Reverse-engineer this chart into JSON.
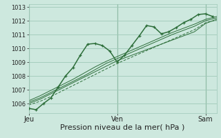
{
  "bg_color": "#cde8de",
  "grid_color": "#9fc8b8",
  "line_color": "#2d6e3a",
  "vline_color": "#4a8a5a",
  "xlabel": "Pression niveau de la mer( hPa )",
  "xlabel_fontsize": 8,
  "ylim": [
    1005.3,
    1013.2
  ],
  "yticks": [
    1006,
    1007,
    1008,
    1009,
    1010,
    1011,
    1012,
    1013
  ],
  "xtick_labels": [
    "Jeu",
    "Ven",
    "Sam"
  ],
  "xtick_positions": [
    0,
    24,
    48
  ],
  "total_hours": 51,
  "series1_x": [
    0,
    2,
    4,
    6,
    8,
    10,
    12,
    14,
    16,
    18,
    20,
    22,
    24,
    26,
    28,
    30,
    32,
    34,
    36,
    38,
    40,
    42,
    44,
    46,
    48,
    50
  ],
  "series1_y": [
    1005.65,
    1005.55,
    1006.0,
    1006.4,
    1007.2,
    1008.0,
    1008.6,
    1009.5,
    1010.3,
    1010.35,
    1010.2,
    1009.8,
    1009.0,
    1009.5,
    1010.2,
    1010.9,
    1011.65,
    1011.55,
    1011.05,
    1011.2,
    1011.5,
    1011.85,
    1012.1,
    1012.45,
    1012.5,
    1012.3
  ],
  "series2_x": [
    0,
    3,
    6,
    9,
    12,
    15,
    18,
    21,
    24,
    27,
    30,
    33,
    36,
    39,
    42,
    45,
    48,
    51
  ],
  "series2_y": [
    1006.0,
    1006.3,
    1006.7,
    1007.1,
    1007.5,
    1007.9,
    1008.3,
    1008.7,
    1009.1,
    1009.4,
    1009.7,
    1010.0,
    1010.3,
    1010.6,
    1010.9,
    1011.2,
    1011.8,
    1012.1
  ],
  "series3_x": [
    0,
    3,
    6,
    9,
    12,
    15,
    18,
    21,
    24,
    27,
    30,
    33,
    36,
    39,
    42,
    45,
    48,
    51
  ],
  "series3_y": [
    1005.9,
    1006.15,
    1006.5,
    1006.9,
    1007.3,
    1007.7,
    1008.1,
    1008.5,
    1008.9,
    1009.25,
    1009.6,
    1009.95,
    1010.3,
    1010.65,
    1011.0,
    1011.35,
    1011.85,
    1012.05
  ],
  "series4_x": [
    0,
    3,
    6,
    9,
    12,
    15,
    18,
    21,
    24,
    27,
    30,
    33,
    36,
    39,
    42,
    45,
    48,
    51
  ],
  "series4_y": [
    1006.1,
    1006.4,
    1006.8,
    1007.2,
    1007.6,
    1008.0,
    1008.45,
    1008.9,
    1009.25,
    1009.6,
    1009.95,
    1010.3,
    1010.65,
    1011.0,
    1011.3,
    1011.6,
    1012.0,
    1012.2
  ],
  "series5_x": [
    0,
    3,
    6,
    9,
    12,
    15,
    18,
    21,
    24,
    27,
    30,
    33,
    36,
    39,
    42,
    45,
    48,
    51
  ],
  "series5_y": [
    1006.2,
    1006.55,
    1006.95,
    1007.35,
    1007.75,
    1008.2,
    1008.65,
    1009.05,
    1009.4,
    1009.75,
    1010.1,
    1010.45,
    1010.8,
    1011.15,
    1011.45,
    1011.75,
    1012.1,
    1012.3
  ]
}
